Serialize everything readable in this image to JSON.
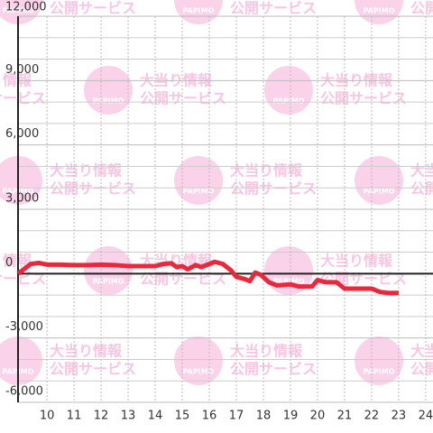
{
  "chart_data": {
    "type": "line",
    "watermark": {
      "logo": "PAPIMO",
      "line1": "大当り情報",
      "line2": "公開サービス"
    },
    "x": [
      8.93,
      9.4,
      9.7,
      10,
      10.5,
      11,
      11.5,
      12,
      12.5,
      13,
      13.5,
      14,
      14.3,
      14.6,
      14.8,
      15,
      15.2,
      15.5,
      15.7,
      16,
      16.2,
      16.5,
      16.8,
      17,
      17.3,
      17.5,
      17.7,
      17.9,
      18.2,
      18.5,
      19,
      19.3,
      19.8,
      20,
      20.3,
      20.7,
      21,
      21.5,
      22,
      22.3,
      22.6,
      23
    ],
    "series": [
      {
        "color": "#e8283c",
        "values": [
          0,
          450,
          500,
          420,
          420,
          400,
          400,
          420,
          400,
          350,
          350,
          350,
          450,
          480,
          300,
          350,
          200,
          400,
          300,
          450,
          550,
          450,
          150,
          -150,
          -250,
          -350,
          50,
          -50,
          -400,
          -550,
          -500,
          -600,
          -600,
          -300,
          -400,
          -400,
          -700,
          -700,
          -700,
          -850,
          -900,
          -900
        ]
      }
    ],
    "xlim": [
      8.93,
      24.27
    ],
    "xticks": [
      10,
      11,
      12,
      13,
      14,
      15,
      16,
      17,
      18,
      19,
      20,
      21,
      22,
      23,
      24
    ],
    "ylim": [
      -6000,
      12000
    ],
    "yticks": [
      {
        "value": -6000,
        "label": "-6,000"
      },
      {
        "value": -3000,
        "label": "-3,000"
      },
      0,
      {
        "value": 3000,
        "label": "3,000"
      },
      {
        "value": 6000,
        "label": "6,000"
      },
      {
        "value": 9000,
        "label": "9,000"
      },
      {
        "value": 12000,
        "label": "12,000"
      }
    ],
    "minor_yticks": [
      -5000,
      -4000,
      -2000,
      -1000,
      1000,
      2000,
      4000,
      5000,
      7000,
      8000,
      10000,
      11000
    ],
    "grid": true
  }
}
